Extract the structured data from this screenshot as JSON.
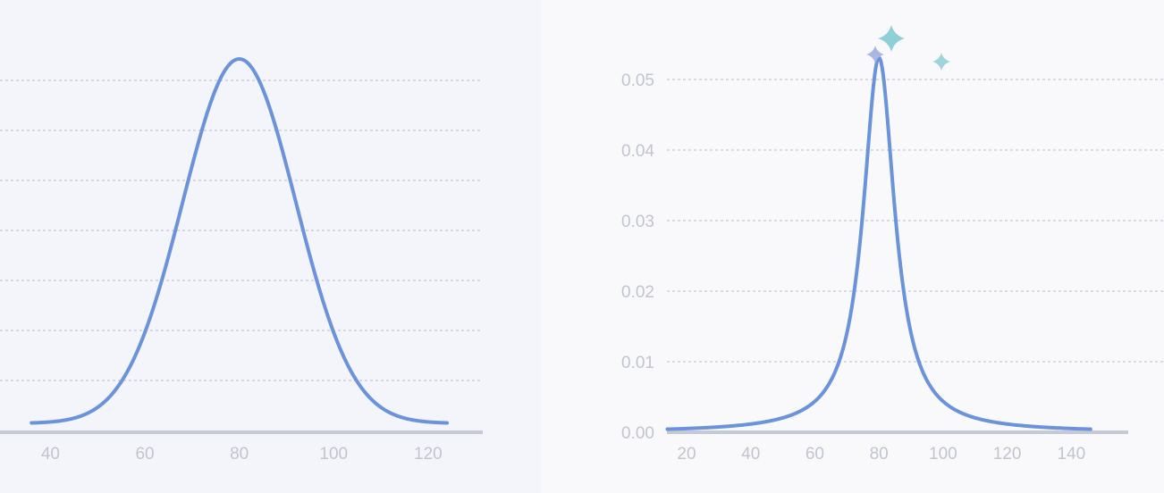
{
  "colors": {
    "left_panel_bg": "#f4f5fa",
    "right_panel_bg": "#f9f9fc",
    "curve": "#6a93dc",
    "grid": "#c5c8d6",
    "axis": "#c7cad6",
    "tick_label": "#c2c4cf",
    "sparkle_large": "#8fcfd8",
    "sparkle_left": "#a9b7e2",
    "sparkle_right": "#9fd3dc"
  },
  "chart_data": [
    {
      "type": "line",
      "title": "",
      "xlabel": "",
      "ylabel": "",
      "x_ticks": [
        "40",
        "60",
        "80",
        "100",
        "120"
      ],
      "xlim": [
        35,
        124
      ],
      "ylim": [
        0,
        1
      ],
      "grid": true,
      "series": [
        {
          "distribution": "normal",
          "center": 80,
          "spread": 12,
          "x_range": [
            36,
            124
          ]
        }
      ]
    },
    {
      "type": "line",
      "title": "",
      "xlabel": "",
      "ylabel": "",
      "x_ticks": [
        "20",
        "40",
        "60",
        "80",
        "100",
        "120",
        "140"
      ],
      "y_ticks": [
        "0.00",
        "0.01",
        "0.02",
        "0.03",
        "0.04",
        "0.05"
      ],
      "xlim": [
        12,
        150
      ],
      "ylim": [
        0,
        0.055
      ],
      "grid": true,
      "series": [
        {
          "distribution": "cauchy",
          "center": 80,
          "spread": 6,
          "peak": 0.0531,
          "x_range": [
            14,
            146
          ]
        }
      ]
    }
  ]
}
